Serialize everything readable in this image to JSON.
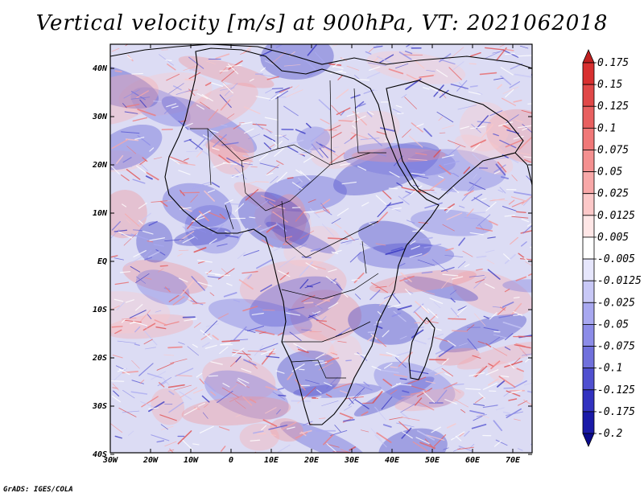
{
  "title": "Vertical velocity [m/s] at 900hPa, VT: 2021062018",
  "credit": "GrADS: IGES/COLA",
  "map": {
    "region": "Africa",
    "lon_range": [
      -30,
      75
    ],
    "lat_range": [
      -40,
      45
    ],
    "lat_ticks": [
      "40N",
      "30N",
      "20N",
      "10N",
      "EQ",
      "10S",
      "20S",
      "30S",
      "40S"
    ],
    "lon_ticks": [
      "30W",
      "20W",
      "10W",
      "0",
      "10E",
      "20E",
      "30E",
      "40E",
      "50E",
      "60E",
      "70E"
    ],
    "field": "vertical velocity",
    "field_visualization": "fine-scale red/blue streaks over land and ocean"
  },
  "colorbar": {
    "labels": [
      "0.175",
      "0.15",
      "0.125",
      "0.1",
      "0.075",
      "0.05",
      "0.025",
      "0.0125",
      "0.005",
      "-0.005",
      "-0.0125",
      "-0.025",
      "-0.05",
      "-0.075",
      "-0.1",
      "-0.125",
      "-0.175",
      "-0.2"
    ],
    "colors": [
      "#c02020",
      "#d83030",
      "#e04848",
      "#e86060",
      "#f07878",
      "#f49090",
      "#f8a8a8",
      "#fcc8c8",
      "#fee6e6",
      "#ffffff",
      "#e6e6fc",
      "#c8c8f6",
      "#a8a8f0",
      "#8c8ce8",
      "#7070dc",
      "#5050d0",
      "#3232c0",
      "#1a1aa8",
      "#0a0a8c"
    ]
  }
}
